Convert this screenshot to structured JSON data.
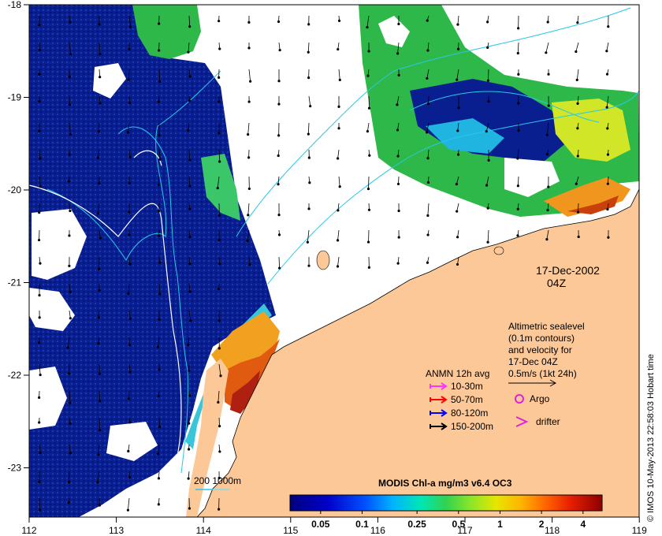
{
  "map": {
    "x_axis": {
      "ticks": [
        "112",
        "113",
        "114",
        "115",
        "116",
        "117",
        "118",
        "119"
      ]
    },
    "y_axis": {
      "ticks": [
        "-18",
        "-19",
        "-20",
        "-21",
        "-22",
        "-23"
      ]
    },
    "date_line1": "17-Dec-2002",
    "date_line2": "04Z",
    "altimetry": {
      "line1": "Altimetric sealevel",
      "line2": "(0.1m contours)",
      "line3": "and velocity for",
      "line4": "17-Dec 04Z",
      "scale_label": "0.5m/s (1kt 24h)"
    },
    "anmn": {
      "title": "ANMN 12h avg",
      "items": [
        {
          "label": "10-30m",
          "color": "#ff33ff"
        },
        {
          "label": "50-70m",
          "color": "#ff0000"
        },
        {
          "label": "80-120m",
          "color": "#0000ff"
        },
        {
          "label": "150-200m",
          "color": "#000000"
        }
      ]
    },
    "argo_label": "Argo",
    "drifter_label": "drifter",
    "bathy_label": "200  1000m",
    "colorbar": {
      "title": "MODIS Chl-a mg/m3 v6.4 OC3",
      "ticks": [
        "0.05",
        "0.1",
        "0.25",
        "0.5",
        "1",
        "2",
        "4"
      ],
      "colors": [
        "#00007f",
        "#0000c8",
        "#0050ff",
        "#00b4ff",
        "#00e6b4",
        "#32d250",
        "#8ce628",
        "#e6e600",
        "#ffb400",
        "#ff6400",
        "#e61e00",
        "#8c0000"
      ]
    },
    "credit": "© IMOS 10-May-2013 22:58:03 Hobart time",
    "colors": {
      "land": "#fcc898",
      "deep_blue": "#0a1f8f",
      "green": "#2fb84a",
      "contour": "#28c8e6",
      "frame": "#000000"
    }
  }
}
